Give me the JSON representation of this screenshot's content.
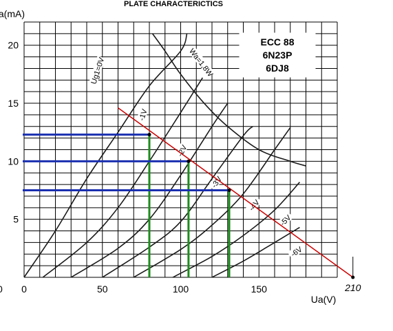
{
  "chart_data": {
    "type": "line",
    "title": "PLATE CHARACTERICTICS",
    "tube_names": [
      "ECC 88",
      "6N23P",
      "6DJ8"
    ],
    "xlabel": "Ua(V)",
    "ylabel": "Ia(mA)",
    "xlim": [
      0,
      200
    ],
    "ylim": [
      0,
      22
    ],
    "x_ticks": [
      0,
      50,
      100,
      150
    ],
    "y_ticks": [
      5,
      10,
      15,
      20
    ],
    "y_zero_label": "0",
    "grid": true,
    "series": [
      {
        "name": "Ug1=0V",
        "points": [
          [
            0,
            0
          ],
          [
            20,
            4
          ],
          [
            40,
            8.5
          ],
          [
            60,
            12.5
          ],
          [
            80,
            16.5
          ],
          [
            100,
            19.5
          ],
          [
            104,
            21
          ]
        ]
      },
      {
        "name": "-1V",
        "points": [
          [
            12,
            0
          ],
          [
            40,
            3
          ],
          [
            60,
            6
          ],
          [
            80,
            10
          ],
          [
            100,
            14.2
          ],
          [
            114,
            17.2
          ]
        ]
      },
      {
        "name": "-2V",
        "points": [
          [
            30,
            0
          ],
          [
            60,
            2.5
          ],
          [
            80,
            5
          ],
          [
            100,
            8.8
          ],
          [
            120,
            13
          ],
          [
            130,
            15
          ]
        ]
      },
      {
        "name": "-3V",
        "points": [
          [
            50,
            0
          ],
          [
            80,
            2.6
          ],
          [
            100,
            4.8
          ],
          [
            120,
            8.5
          ],
          [
            140,
            12.2
          ],
          [
            146,
            13
          ]
        ]
      },
      {
        "name": "-4V",
        "points": [
          [
            70,
            0
          ],
          [
            100,
            2.4
          ],
          [
            120,
            4.5
          ],
          [
            140,
            7.2
          ],
          [
            160,
            11
          ],
          [
            170,
            12.9
          ]
        ]
      },
      {
        "name": "-5V",
        "points": [
          [
            95,
            0
          ],
          [
            120,
            1.8
          ],
          [
            140,
            3.6
          ],
          [
            160,
            5.8
          ],
          [
            176,
            8.2
          ]
        ]
      },
      {
        "name": "-6V",
        "points": [
          [
            120,
            0
          ],
          [
            140,
            1.4
          ],
          [
            160,
            3
          ],
          [
            176,
            4.3
          ]
        ]
      }
    ],
    "curve_labels": [
      {
        "name": "Ug1=0V",
        "x": 47,
        "y": 17.8,
        "angle": -72
      },
      {
        "name": "-1V",
        "x": 76,
        "y": 14,
        "angle": -72
      },
      {
        "name": "-2V",
        "x": 101,
        "y": 10.9,
        "angle": -62
      },
      {
        "name": "-3V",
        "x": 123,
        "y": 8.2,
        "angle": -55
      },
      {
        "name": "-4V",
        "x": 147,
        "y": 6.2,
        "angle": -50
      },
      {
        "name": "-5V",
        "x": 167,
        "y": 4.9,
        "angle": -45
      },
      {
        "name": "-6V",
        "x": 174,
        "y": 2.2,
        "angle": -35
      }
    ],
    "max_dissipation": {
      "name": "Wa=1,8W",
      "points": [
        [
          82,
          21
        ],
        [
          90,
          19.5
        ],
        [
          100,
          17.5
        ],
        [
          115,
          15
        ],
        [
          130,
          13
        ],
        [
          150,
          11
        ],
        [
          170,
          10
        ],
        [
          180,
          9.6
        ]
      ],
      "label_x": 113,
      "label_y": 18.5,
      "label_angle": 52
    },
    "load_line": {
      "points": [
        [
          60,
          14.6
        ],
        [
          210,
          0
        ]
      ],
      "end_label": "210",
      "color": "#cc0000"
    },
    "operating_points": [
      {
        "ua": 80,
        "ia": 12.3
      },
      {
        "ua": 105,
        "ia": 10
      },
      {
        "ua": 131,
        "ia": 7.5
      }
    ],
    "horizontal_guide_color": "#1a2fb0",
    "vertical_guide_color": "#1e8c1e"
  }
}
